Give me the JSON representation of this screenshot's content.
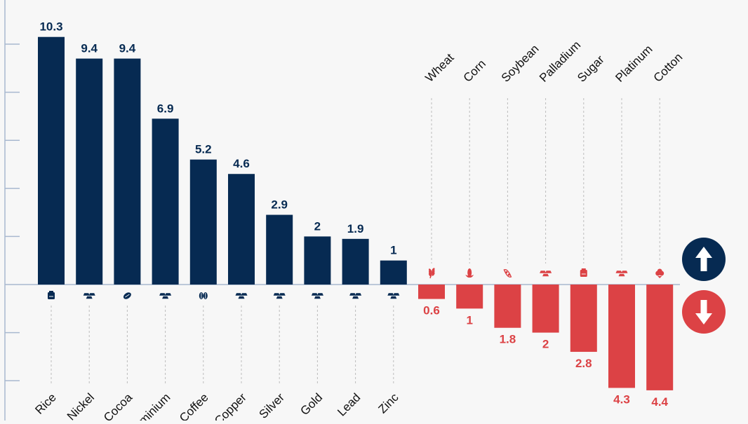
{
  "chart_data": {
    "type": "bar",
    "ylim": [
      -4.4,
      10.3
    ],
    "grid": false,
    "colors": {
      "up": "#062a52",
      "down": "#dc4245",
      "axis": "#a8b8cf"
    },
    "series": [
      {
        "name": "",
        "direction": "up",
        "categories": [
          "Rice",
          "Nickel",
          "Cocoa",
          "Aluminium",
          "Coffee",
          "Copper",
          "Silver",
          "Gold",
          "Lead",
          "Zinc"
        ],
        "values": [
          10.3,
          9.4,
          9.4,
          6.9,
          5.2,
          4.6,
          2.9,
          2,
          1.9,
          1
        ],
        "value_labels": [
          "10.3",
          "9.4",
          "9.4",
          "6.9",
          "5.2",
          "4.6",
          "2.9",
          "2",
          "1.9",
          "1"
        ],
        "icons": [
          "rice-bag-icon",
          "metal-ingots-icon",
          "cocoa-pod-icon",
          "metal-ingots-icon",
          "coffee-beans-icon",
          "metal-ingots-icon",
          "metal-ingots-icon",
          "metal-ingots-icon",
          "metal-ingots-icon",
          "metal-ingots-icon"
        ]
      },
      {
        "name": "",
        "direction": "down",
        "categories": [
          "Wheat",
          "Corn",
          "Soybean",
          "Palladium",
          "Sugar",
          "Platinum",
          "Cotton"
        ],
        "values": [
          -0.6,
          -1,
          -1.8,
          -2,
          -2.8,
          -4.3,
          -4.4
        ],
        "value_labels": [
          "0.6",
          "1",
          "1.8",
          "2",
          "2.8",
          "4.3",
          "4.4"
        ],
        "icons": [
          "wheat-icon",
          "corn-icon",
          "soybean-icon",
          "metal-ingots-icon",
          "sugar-bag-icon",
          "metal-ingots-icon",
          "cotton-icon"
        ]
      }
    ],
    "legend": [
      {
        "icon": "arrow-up-icon",
        "color": "#062a52"
      },
      {
        "icon": "arrow-down-icon",
        "color": "#dc4245"
      }
    ]
  }
}
